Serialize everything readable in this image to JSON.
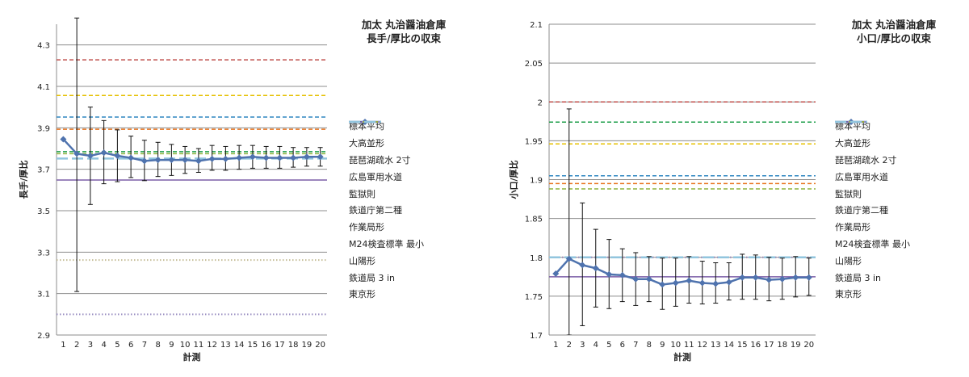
{
  "charts": [
    {
      "title_line1": "加太 丸治醤油倉庫",
      "title_line2": "長手/厚比の収束",
      "xlabel": "計測",
      "ylabel": "長手/厚比"
    },
    {
      "title_line1": "加太 丸治醤油倉庫",
      "title_line2": "小口/厚比の収束",
      "xlabel": "計測",
      "ylabel": "小口/厚比"
    }
  ],
  "chart_data": [
    {
      "type": "line",
      "title": "加太 丸治醤油倉庫 長手/厚比の収束",
      "xlabel": "計測",
      "ylabel": "長手/厚比",
      "x": [
        1,
        2,
        3,
        4,
        5,
        6,
        7,
        8,
        9,
        10,
        11,
        12,
        13,
        14,
        15,
        16,
        17,
        18,
        19,
        20
      ],
      "ylim": [
        2.9,
        4.4
      ],
      "yticks": [
        2.9,
        3.1,
        3.3,
        3.5,
        3.7,
        3.9,
        4.1,
        4.3
      ],
      "ytick_labels": [
        "2.9",
        "3.1",
        "3.3",
        "3.5",
        "3.7",
        "3.9",
        "4.1",
        "4.3"
      ],
      "grid": true,
      "legend_position": "right",
      "mean_series": {
        "name": "標本平均",
        "color": "#4F73AE",
        "values": [
          3.845,
          3.775,
          3.765,
          3.78,
          3.765,
          3.755,
          3.74,
          3.745,
          3.745,
          3.745,
          3.74,
          3.75,
          3.75,
          3.755,
          3.76,
          3.755,
          3.755,
          3.755,
          3.76,
          3.76
        ],
        "err_upper": [
          null,
          4.43,
          4.0,
          3.935,
          3.89,
          3.86,
          3.84,
          3.83,
          3.82,
          3.81,
          3.8,
          3.815,
          3.81,
          3.815,
          3.815,
          3.81,
          3.81,
          3.805,
          3.805,
          3.805
        ],
        "err_lower": [
          null,
          3.11,
          3.53,
          3.63,
          3.64,
          3.66,
          3.645,
          3.665,
          3.67,
          3.68,
          3.685,
          3.695,
          3.695,
          3.7,
          3.705,
          3.705,
          3.705,
          3.71,
          3.715,
          3.715
        ]
      },
      "reference_lines": [
        {
          "name": "大高並形",
          "value": 4.228,
          "color": "#C0504D",
          "style": "dashed"
        },
        {
          "name": "琵琶湖疏水 2寸",
          "value": 3.648,
          "color": "#7B5EA7",
          "style": "solid"
        },
        {
          "name": "広島軍用水道",
          "value": 3.785,
          "color": "#1E9E4A",
          "style": "dashed"
        },
        {
          "name": "監獄則",
          "value": 3.952,
          "color": "#2E86C1",
          "style": "dashed"
        },
        {
          "name": "鉄道庁第二種",
          "value": 3.893,
          "color": "#E8741E",
          "style": "dashed"
        },
        {
          "name": "作業局形",
          "value": 4.056,
          "color": "#E6C000",
          "style": "dashed"
        },
        {
          "name": "M24検査標準 最小",
          "value": 3.775,
          "color": "#8DB33E",
          "style": "dashed"
        },
        {
          "name": "山陽形",
          "value": 3.262,
          "color": "#C4BD97",
          "style": "dotted"
        },
        {
          "name": "鉄道局 3 in",
          "value": 3.0,
          "color": "#9A8FC2",
          "style": "dotted"
        },
        {
          "name": "東京形",
          "value": 3.752,
          "color": "#92C5DE",
          "style": "longdash"
        }
      ]
    },
    {
      "type": "line",
      "title": "加太 丸治醤油倉庫 小口/厚比の収束",
      "xlabel": "計測",
      "ylabel": "小口/厚比",
      "x": [
        1,
        2,
        3,
        4,
        5,
        6,
        7,
        8,
        9,
        10,
        11,
        12,
        13,
        14,
        15,
        16,
        17,
        18,
        19,
        20
      ],
      "ylim": [
        1.7,
        2.1
      ],
      "yticks": [
        1.7,
        1.75,
        1.8,
        1.85,
        1.9,
        1.95,
        2.0,
        2.05,
        2.1
      ],
      "ytick_labels": [
        "1.7",
        "1.75",
        "1.8",
        "1.85",
        "1.9",
        "1.95",
        "2",
        "2.05",
        "2.1"
      ],
      "grid": true,
      "legend_position": "right",
      "mean_series": {
        "name": "標本平均",
        "color": "#4F73AE",
        "values": [
          1.779,
          1.798,
          1.79,
          1.786,
          1.778,
          1.777,
          1.772,
          1.772,
          1.765,
          1.767,
          1.77,
          1.767,
          1.766,
          1.768,
          1.774,
          1.774,
          1.771,
          1.772,
          1.774,
          1.774
        ],
        "err_upper": [
          null,
          1.991,
          1.87,
          1.836,
          1.823,
          1.811,
          1.806,
          1.801,
          1.799,
          1.799,
          1.801,
          1.795,
          1.793,
          1.793,
          1.804,
          1.803,
          1.8,
          1.799,
          1.801,
          1.799
        ],
        "err_lower": [
          null,
          1.7,
          1.712,
          1.736,
          1.734,
          1.743,
          1.738,
          1.743,
          1.733,
          1.737,
          1.741,
          1.74,
          1.741,
          1.745,
          1.746,
          1.746,
          1.744,
          1.746,
          1.749,
          1.751
        ]
      },
      "reference_lines": [
        {
          "name": "大高並形",
          "value": 2.0,
          "color": "#C0504D",
          "style": "dashed"
        },
        {
          "name": "琵琶湖疏水 2寸",
          "value": 1.775,
          "color": "#7B5EA7",
          "style": "solid"
        },
        {
          "name": "広島軍用水道",
          "value": 1.974,
          "color": "#1E9E4A",
          "style": "dashed"
        },
        {
          "name": "監獄則",
          "value": 1.905,
          "color": "#2E86C1",
          "style": "dashed"
        },
        {
          "name": "鉄道庁第二種",
          "value": 1.895,
          "color": "#E8741E",
          "style": "dashed"
        },
        {
          "name": "作業局形",
          "value": 1.946,
          "color": "#E6C000",
          "style": "dashed"
        },
        {
          "name": "M24検査標準 最小",
          "value": 1.888,
          "color": "#8DB33E",
          "style": "dashed"
        },
        {
          "name": "山陽形",
          "value": 1.8,
          "color": "#C4BD97",
          "style": "dotted"
        },
        {
          "name": "鉄道局 3 in",
          "value": 1.8,
          "color": "#9A8FC2",
          "style": "dotted"
        },
        {
          "name": "東京形",
          "value": 1.8,
          "color": "#92C5DE",
          "style": "longdash"
        }
      ]
    }
  ]
}
